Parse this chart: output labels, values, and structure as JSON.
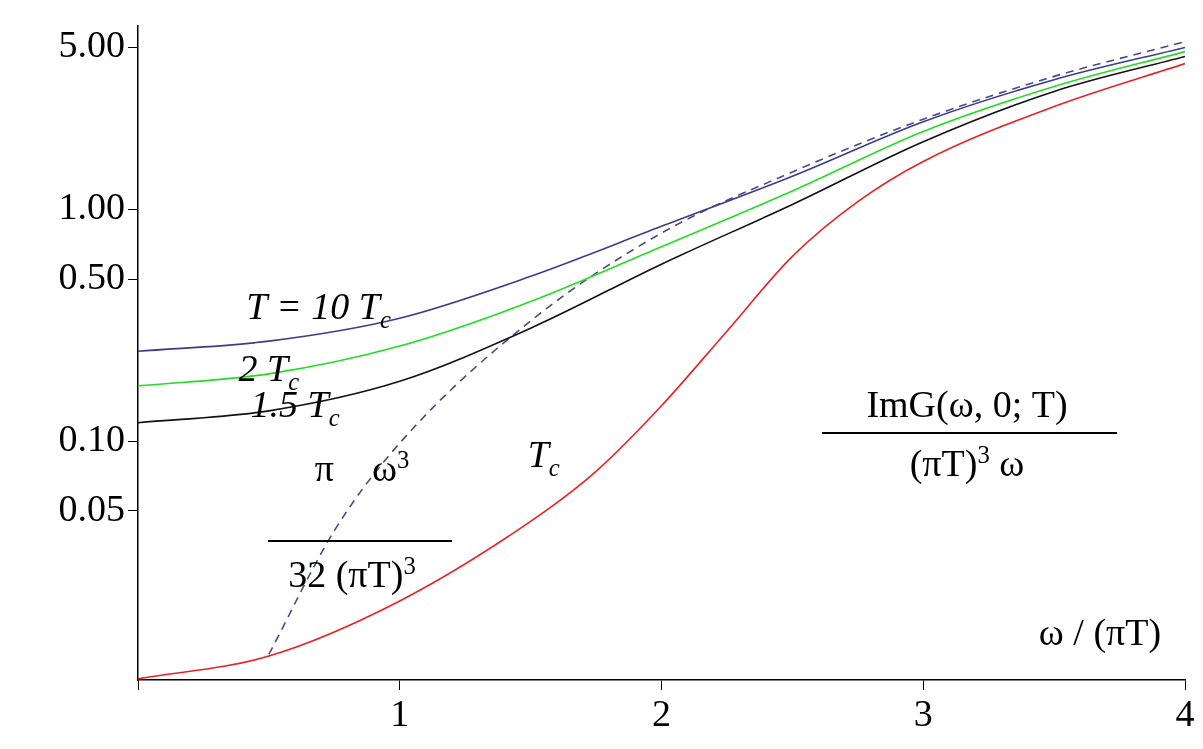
{
  "chart_data": {
    "type": "line",
    "xlabel": "ω / (πT)",
    "log": "y",
    "grid": false,
    "legend": false,
    "marker": "none",
    "line_style": "solid",
    "xlim": [
      0,
      4
    ],
    "xticks": [
      {
        "value": 0,
        "label": null
      },
      1,
      2,
      3,
      4
    ],
    "ylim": [
      0.0093,
      6.2
    ],
    "yticks": [
      {
        "value": 0.05,
        "label": "0.05"
      },
      {
        "value": 0.1,
        "label": "0.10"
      },
      {
        "value": 0.5,
        "label": "0.50"
      },
      {
        "value": 1,
        "label": "1.00"
      },
      {
        "value": 5,
        "label": "5.00"
      }
    ],
    "annotations": [
      "π    ω$^{3}$",
      "32 (πT)$^{3}$",
      "ImG(ω, 0; T)",
      "(πT)$^{3}$ ω"
    ],
    "series": [
      {
        "name": "T = 10 T$_{c}$",
        "color": "#3c3c8c",
        "x": [
          0,
          0.5,
          1,
          1.5,
          2,
          2.5,
          3,
          3.5,
          4
        ],
        "values": [
          0.244,
          0.27,
          0.339,
          0.514,
          0.845,
          1.39,
          2.39,
          3.63,
          5.0
        ]
      },
      {
        "name": "2 T$_{c}$",
        "color": "#22dd22",
        "x": [
          0,
          0.5,
          1,
          1.5,
          2,
          2.5,
          3,
          3.5,
          4
        ],
        "values": [
          0.173,
          0.195,
          0.257,
          0.4,
          0.69,
          1.2,
          2.17,
          3.39,
          4.8
        ]
      },
      {
        "name": "1.5 T$_{c}$",
        "color": "#111111",
        "x": [
          0,
          0.5,
          1,
          1.5,
          2,
          2.5,
          3,
          3.5,
          4
        ],
        "values": [
          0.12,
          0.135,
          0.181,
          0.307,
          0.58,
          1.05,
          1.96,
          3.23,
          4.57
        ]
      },
      {
        "name": "T$_{c}$",
        "color": "#e82222",
        "x": [
          0,
          0.5,
          1,
          1.5,
          1.75,
          2,
          2.25,
          2.5,
          2.75,
          3,
          3.5,
          4
        ],
        "values": [
          0.0094,
          0.0118,
          0.0204,
          0.045,
          0.074,
          0.142,
          0.298,
          0.627,
          1.08,
          1.61,
          2.78,
          4.26
        ]
      },
      {
        "color": "#4a4a86",
        "line_style": "dashed",
        "x": [
          0.5,
          0.75,
          1,
          1.5,
          2,
          2.5,
          3,
          3.5,
          4
        ],
        "values": [
          0.012,
          0.041,
          0.098,
          0.33,
          0.79,
          1.45,
          2.45,
          3.75,
          5.3
        ]
      }
    ]
  }
}
